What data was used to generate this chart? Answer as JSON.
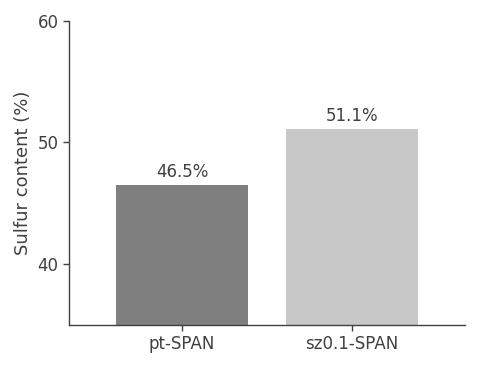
{
  "categories": [
    "pt-SPAN",
    "sz0.1-SPAN"
  ],
  "values": [
    46.5,
    51.1
  ],
  "bar_colors": [
    "#7f7f7f",
    "#c8c8c8"
  ],
  "bar_labels": [
    "46.5%",
    "51.1%"
  ],
  "ylabel": "Sulfur content (%)",
  "ylim": [
    35,
    60
  ],
  "yticks": [
    40,
    50,
    60
  ],
  "background_color": "#ffffff",
  "bar_width": 0.35,
  "label_fontsize": 12,
  "tick_fontsize": 12,
  "ylabel_fontsize": 13
}
